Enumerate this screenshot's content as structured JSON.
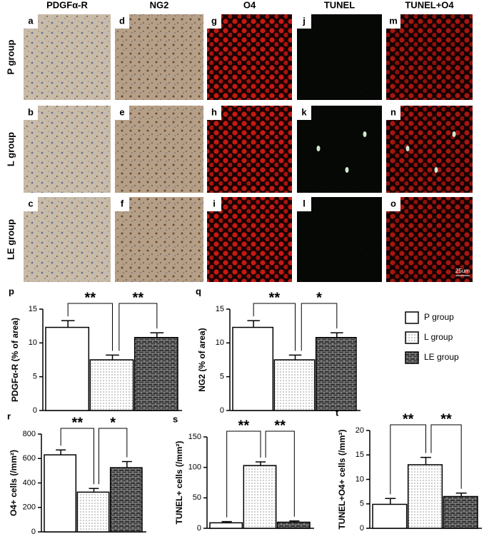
{
  "images": {
    "columns": [
      "PDGFα-R",
      "NG2",
      "O4",
      "TUNEL",
      "TUNEL+O4"
    ],
    "rows": [
      "P group",
      "L group",
      "LE group"
    ],
    "letters": [
      [
        "a",
        "d",
        "g",
        "j",
        "m"
      ],
      [
        "b",
        "e",
        "h",
        "k",
        "n"
      ],
      [
        "c",
        "f",
        "i",
        "l",
        "o"
      ]
    ],
    "scale_label": "25um"
  },
  "legend": {
    "items": [
      "P group",
      "L group",
      "LE group"
    ]
  },
  "chart_data": [
    {
      "type": "bar",
      "panel": "p",
      "ylabel": "PDGFα-R (% of area)",
      "values": [
        12.3,
        7.5,
        10.8
      ],
      "errors": [
        1.0,
        0.7,
        0.7
      ],
      "ylim": [
        0,
        15
      ],
      "yticks": [
        0,
        5,
        10,
        15
      ],
      "annotations": [
        "**",
        "**"
      ]
    },
    {
      "type": "bar",
      "panel": "q",
      "ylabel": "NG2 (% of area)",
      "values": [
        12.3,
        7.5,
        10.8
      ],
      "errors": [
        1.0,
        0.7,
        0.7
      ],
      "ylim": [
        0,
        15
      ],
      "yticks": [
        0,
        5,
        10,
        15
      ],
      "annotations": [
        "**",
        "*"
      ]
    },
    {
      "type": "bar",
      "panel": "r",
      "ylabel": "O4+ cells (/mm²)",
      "values": [
        630,
        325,
        525
      ],
      "errors": [
        40,
        30,
        50
      ],
      "ylim": [
        0,
        800
      ],
      "yticks": [
        0,
        200,
        400,
        600,
        800
      ],
      "annotations": [
        "**",
        "*"
      ]
    },
    {
      "type": "bar",
      "panel": "s",
      "ylabel": "TUNEL+ cells (/mm²)",
      "values": [
        9,
        103,
        10
      ],
      "errors": [
        2,
        6,
        2
      ],
      "ylim": [
        0,
        150
      ],
      "yticks": [
        0,
        50,
        100,
        150
      ],
      "annotations": [
        "**",
        "**"
      ]
    },
    {
      "type": "bar",
      "panel": "t",
      "ylabel": "TUNEL+O4+ cells (/mm²)",
      "values": [
        4.9,
        13,
        6.5
      ],
      "errors": [
        1.2,
        1.5,
        0.7
      ],
      "ylim": [
        0,
        20
      ],
      "yticks": [
        0,
        5,
        10,
        15,
        20
      ],
      "annotations": [
        "**",
        "**"
      ]
    }
  ]
}
